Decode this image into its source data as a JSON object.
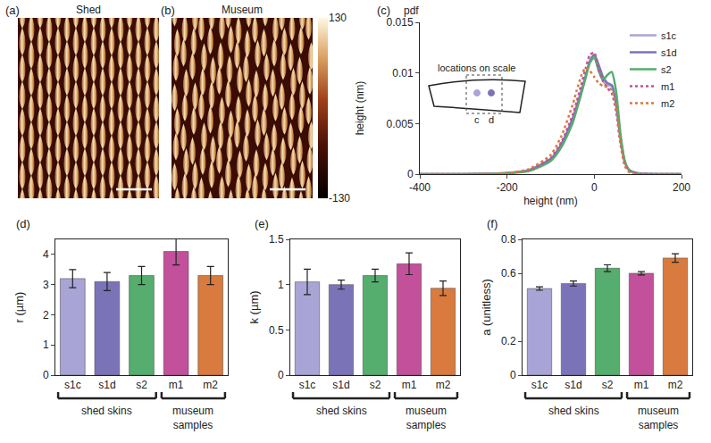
{
  "chart_data": [
    {
      "type": "image",
      "panel": "(a)",
      "title": "Shed"
    },
    {
      "type": "image",
      "panel": "(b)",
      "title": "Museum",
      "colorbar": {
        "title": "height (nm)",
        "range": [
          -130,
          130
        ],
        "ticks": [
          -130,
          130
        ]
      }
    },
    {
      "type": "line",
      "panel": "(c)",
      "y_label": "pdf",
      "x_label": "height (nm)",
      "x": [
        -400,
        -300,
        -200,
        -150,
        -100,
        -75,
        -50,
        -40,
        -30,
        -20,
        -10,
        0,
        10,
        20,
        30,
        40,
        50,
        60,
        70,
        80,
        100,
        150,
        200
      ],
      "series": [
        {
          "name": "s1c",
          "color": "#a9a4d6",
          "line_style": "solid",
          "values": [
            0,
            0,
            0.0001,
            0.0004,
            0.0015,
            0.003,
            0.0055,
            0.0068,
            0.0082,
            0.0097,
            0.0111,
            0.0115,
            0.0104,
            0.0092,
            0.0088,
            0.0087,
            0.0068,
            0.0035,
            0.0012,
            0.0004,
            0.0001,
            0,
            0
          ]
        },
        {
          "name": "s1d",
          "color": "#7b73b8",
          "line_style": "solid",
          "values": [
            0,
            0,
            0.0001,
            0.0004,
            0.0015,
            0.003,
            0.0054,
            0.0067,
            0.0081,
            0.0096,
            0.0112,
            0.0118,
            0.0108,
            0.0096,
            0.009,
            0.0088,
            0.007,
            0.0036,
            0.0012,
            0.0004,
            0.0001,
            0,
            0
          ]
        },
        {
          "name": "s2",
          "color": "#55ad6e",
          "line_style": "solid",
          "values": [
            0,
            0,
            0.0001,
            0.0003,
            0.0013,
            0.0027,
            0.005,
            0.0064,
            0.0079,
            0.0095,
            0.011,
            0.0116,
            0.0102,
            0.0093,
            0.0098,
            0.0101,
            0.0082,
            0.004,
            0.0013,
            0.0004,
            0.0001,
            0,
            0
          ]
        },
        {
          "name": "m1",
          "color": "#c2509a",
          "line_style": "dot",
          "values": [
            0,
            0,
            0.0001,
            0.0004,
            0.0016,
            0.0032,
            0.0058,
            0.0072,
            0.0088,
            0.0104,
            0.0118,
            0.012,
            0.0104,
            0.0092,
            0.0085,
            0.008,
            0.0062,
            0.003,
            0.001,
            0.0003,
            0.0001,
            0,
            0
          ]
        },
        {
          "name": "m2",
          "color": "#d97a3e",
          "line_style": "dot",
          "values": [
            0,
            0,
            0.0001,
            0.0005,
            0.0019,
            0.0038,
            0.0068,
            0.0083,
            0.0097,
            0.0105,
            0.0102,
            0.0096,
            0.009,
            0.0087,
            0.0086,
            0.0083,
            0.0066,
            0.003,
            0.0008,
            0.0002,
            0,
            0,
            0
          ]
        }
      ],
      "xlim": [
        -400,
        200
      ],
      "xticks": [
        -400,
        -200,
        0,
        200
      ],
      "ylim": [
        0,
        0.015
      ],
      "yticks": [
        0,
        0.005,
        0.01,
        0.015
      ],
      "legend": "top-right",
      "inset": {
        "title": "locations on scale",
        "points": [
          {
            "label": "c",
            "color": "#a9a4d6"
          },
          {
            "label": "d",
            "color": "#7b73b8"
          }
        ]
      }
    },
    {
      "type": "bar",
      "panel": "(d)",
      "y_label": "r (µm)",
      "categories": [
        "s1c",
        "s1d",
        "s2",
        "m1",
        "m2"
      ],
      "values": [
        3.2,
        3.1,
        3.3,
        4.1,
        3.3
      ],
      "errors": [
        0.3,
        0.3,
        0.3,
        0.45,
        0.3
      ],
      "colors": [
        "#a9a4d6",
        "#7b73b8",
        "#55ad6e",
        "#c2509a",
        "#d97a3e"
      ],
      "ylim": [
        0,
        4.5
      ],
      "yticks": [
        0,
        1,
        2,
        3,
        4
      ],
      "groups": [
        {
          "label": "shed skins",
          "categories": [
            "s1c",
            "s1d",
            "s2"
          ]
        },
        {
          "label": "museum samples",
          "categories": [
            "m1",
            "m2"
          ]
        }
      ]
    },
    {
      "type": "bar",
      "panel": "(e)",
      "y_label": "k (µm)",
      "categories": [
        "s1c",
        "s1d",
        "s2",
        "m1",
        "m2"
      ],
      "values": [
        1.03,
        1.0,
        1.1,
        1.23,
        0.96
      ],
      "errors": [
        0.14,
        0.05,
        0.07,
        0.12,
        0.08
      ],
      "colors": [
        "#a9a4d6",
        "#7b73b8",
        "#55ad6e",
        "#c2509a",
        "#d97a3e"
      ],
      "ylim": [
        0,
        1.5
      ],
      "yticks": [
        0,
        0.5,
        1,
        1.5
      ],
      "groups": [
        {
          "label": "shed skins",
          "categories": [
            "s1c",
            "s1d",
            "s2"
          ]
        },
        {
          "label": "museum samples",
          "categories": [
            "m1",
            "m2"
          ]
        }
      ]
    },
    {
      "type": "bar",
      "panel": "(f)",
      "y_label": "a (unitless)",
      "categories": [
        "s1c",
        "s1d",
        "s2",
        "m1",
        "m2"
      ],
      "values": [
        0.51,
        0.54,
        0.63,
        0.6,
        0.69
      ],
      "errors": [
        0.01,
        0.015,
        0.02,
        0.01,
        0.025
      ],
      "colors": [
        "#a9a4d6",
        "#7b73b8",
        "#55ad6e",
        "#c2509a",
        "#d97a3e"
      ],
      "ylim": [
        0,
        0.8
      ],
      "yticks": [
        0,
        0.2,
        0.6,
        0.8
      ],
      "groups": [
        {
          "label": "shed skins",
          "categories": [
            "s1c",
            "s1d",
            "s2"
          ]
        },
        {
          "label": "museum samples",
          "categories": [
            "m1",
            "m2"
          ]
        }
      ]
    }
  ]
}
